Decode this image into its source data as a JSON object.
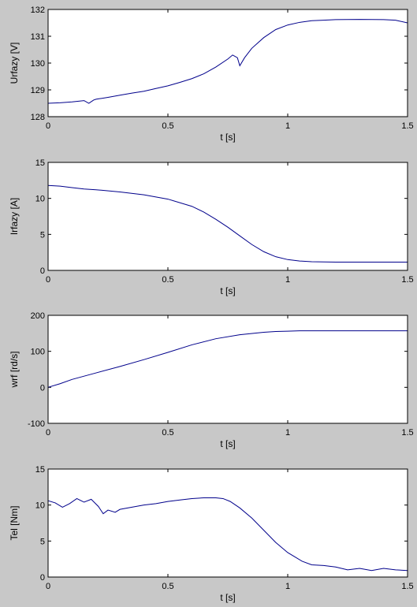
{
  "chart_data": [
    {
      "type": "line",
      "xlabel": "t [s]",
      "ylabel": "Urfazy [V]",
      "xlim": [
        0,
        1.5
      ],
      "ylim": [
        128,
        132
      ],
      "xticks": [
        "0",
        "0.5",
        "1",
        "1.5"
      ],
      "yticks": [
        "128",
        "129",
        "130",
        "131",
        "132"
      ],
      "grid": false,
      "line_color": "#00008b",
      "series": [
        {
          "x": [
            0,
            0.05,
            0.1,
            0.15,
            0.17,
            0.19,
            0.2,
            0.25,
            0.3,
            0.35,
            0.4,
            0.45,
            0.5,
            0.55,
            0.6,
            0.65,
            0.7,
            0.75,
            0.77,
            0.79,
            0.8,
            0.82,
            0.85,
            0.9,
            0.95,
            1.0,
            1.05,
            1.1,
            1.15,
            1.2,
            1.3,
            1.4,
            1.45,
            1.5
          ],
          "y": [
            128.5,
            128.52,
            128.55,
            128.6,
            128.5,
            128.62,
            128.65,
            128.72,
            128.8,
            128.88,
            128.95,
            129.05,
            129.15,
            129.28,
            129.42,
            129.6,
            129.85,
            130.15,
            130.3,
            130.2,
            129.9,
            130.2,
            130.55,
            130.95,
            131.25,
            131.42,
            131.52,
            131.58,
            131.6,
            131.62,
            131.63,
            131.62,
            131.6,
            131.5
          ]
        }
      ]
    },
    {
      "type": "line",
      "xlabel": "t [s]",
      "ylabel": "Irfazy [A]",
      "xlim": [
        0,
        1.5
      ],
      "ylim": [
        0,
        15
      ],
      "xticks": [
        "0",
        "0.5",
        "1",
        "1.5"
      ],
      "yticks": [
        "0",
        "5",
        "10",
        "15"
      ],
      "grid": false,
      "line_color": "#00008b",
      "series": [
        {
          "x": [
            0,
            0.05,
            0.1,
            0.15,
            0.2,
            0.3,
            0.4,
            0.5,
            0.6,
            0.65,
            0.7,
            0.75,
            0.8,
            0.85,
            0.9,
            0.95,
            1.0,
            1.05,
            1.1,
            1.2,
            1.3,
            1.4,
            1.5
          ],
          "y": [
            11.8,
            11.7,
            11.5,
            11.3,
            11.2,
            10.9,
            10.5,
            9.9,
            8.9,
            8.1,
            7.1,
            6.0,
            4.8,
            3.6,
            2.6,
            1.9,
            1.5,
            1.3,
            1.2,
            1.15,
            1.15,
            1.15,
            1.15
          ]
        }
      ]
    },
    {
      "type": "line",
      "xlabel": "t [s]",
      "ylabel": "wrf [rd/s]",
      "xlim": [
        0,
        1.5
      ],
      "ylim": [
        -100,
        200
      ],
      "xticks": [
        "0",
        "0.5",
        "1",
        "1.5"
      ],
      "yticks": [
        "-100",
        "0",
        "100",
        "200"
      ],
      "grid": false,
      "line_color": "#00008b",
      "series": [
        {
          "x": [
            0,
            0.05,
            0.1,
            0.2,
            0.3,
            0.4,
            0.5,
            0.6,
            0.7,
            0.8,
            0.9,
            0.95,
            1.0,
            1.05,
            1.1,
            1.2,
            1.3,
            1.4,
            1.5
          ],
          "y": [
            0,
            10,
            22,
            40,
            58,
            77,
            97,
            118,
            135,
            146,
            153,
            155,
            156,
            157,
            157,
            157,
            157,
            157,
            157
          ]
        }
      ]
    },
    {
      "type": "line",
      "xlabel": "t [s]",
      "ylabel": "Tel [Nm]",
      "xlim": [
        0,
        1.5
      ],
      "ylim": [
        0,
        15
      ],
      "xticks": [
        "0",
        "0.5",
        "1",
        "1.5"
      ],
      "yticks": [
        "0",
        "5",
        "10",
        "15"
      ],
      "grid": false,
      "line_color": "#00008b",
      "series": [
        {
          "x": [
            0,
            0.03,
            0.06,
            0.09,
            0.12,
            0.15,
            0.18,
            0.21,
            0.23,
            0.25,
            0.28,
            0.3,
            0.35,
            0.4,
            0.45,
            0.5,
            0.55,
            0.6,
            0.65,
            0.7,
            0.73,
            0.76,
            0.8,
            0.85,
            0.9,
            0.95,
            1.0,
            1.03,
            1.06,
            1.1,
            1.15,
            1.2,
            1.25,
            1.3,
            1.35,
            1.4,
            1.45,
            1.5
          ],
          "y": [
            10.6,
            10.3,
            9.7,
            10.2,
            10.9,
            10.4,
            10.8,
            9.8,
            8.8,
            9.3,
            9.0,
            9.4,
            9.7,
            10.0,
            10.2,
            10.5,
            10.7,
            10.9,
            11.0,
            11.0,
            10.9,
            10.5,
            9.6,
            8.2,
            6.5,
            4.8,
            3.4,
            2.8,
            2.2,
            1.7,
            1.6,
            1.4,
            1.0,
            1.2,
            0.9,
            1.2,
            1.0,
            0.9
          ]
        }
      ]
    }
  ]
}
